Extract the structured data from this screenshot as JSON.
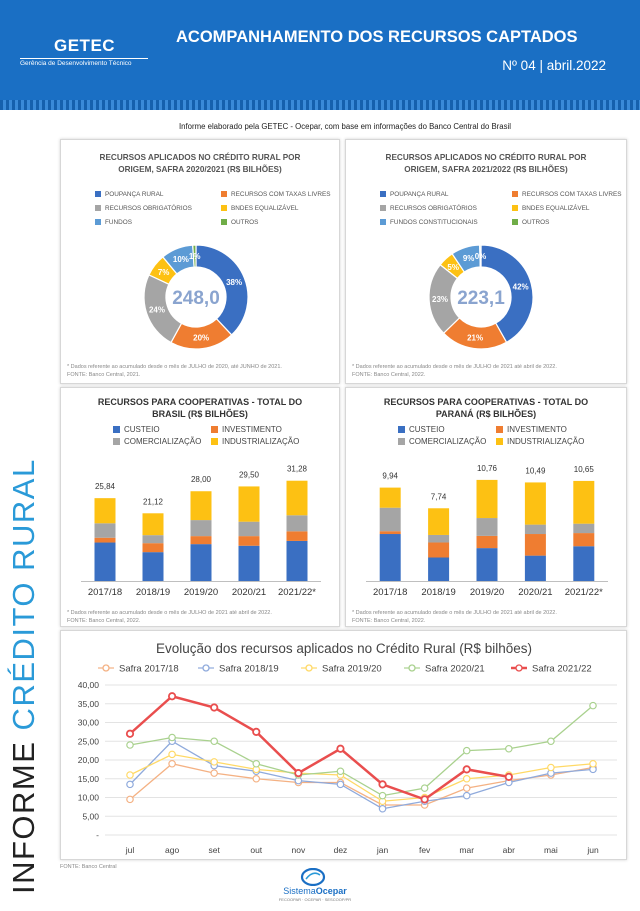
{
  "header": {
    "logo": "GETEC",
    "logo_sub": "Gerência de Desenvolvimento Técnico",
    "title": "ACOMPANHAMENTO DOS RECURSOS CAPTADOS",
    "edition": "Nº 04 | abril.2022"
  },
  "sidebar": {
    "part1": "INFORME ",
    "part2": "CRÉDITO RURAL"
  },
  "intro": "Informe elaborado pela GETEC - Ocepar, com base em informações do Banco Central do Brasil",
  "colors": {
    "blue": "#3a6fc2",
    "orange": "#ef7d31",
    "gray": "#a5a5a5",
    "yellow": "#fdc113",
    "lightblue": "#5c9bd5",
    "green": "#70ad47"
  },
  "pie1": {
    "title1": "RECURSOS APLICADOS NO CRÉDITO RURAL POR",
    "title2": "ORIGEM, SAFRA 2020/2021 (R$ BILHÕES)",
    "legend": [
      "POUPANÇA RURAL",
      "RECURSOS COM TAXAS LIVRES",
      "RECURSOS OBRIGATÓRIOS",
      "BNDES EQUALIZÁVEL",
      "FUNDOS",
      "OUTROS"
    ],
    "center": "248,0",
    "footnote1": "* Dados referente ao acumulado desde o mês de JULHO de 2020, até JUNHO de 2021.",
    "footnote2": "FONTE: Banco Central, 2021."
  },
  "pie2": {
    "title1": "RECURSOS APLICADOS NO CRÉDITO RURAL POR",
    "title2": "ORIGEM, SAFRA 2021/2022 (R$ BILHÕES)",
    "legend": [
      "POUPANÇA RURAL",
      "RECURSOS COM TAXAS LIVRES",
      "RECURSOS OBRIGATÓRIOS",
      "BNDES EQUALIZÁVEL",
      "FUNDOS CONSTITUCIONAIS",
      "OUTROS"
    ],
    "center": "223,1",
    "footnote1": "* Dados referente ao acumulado desde o mês de JULHO de 2021 até abril de 2022.",
    "footnote2": "FONTE: Banco Central, 2022."
  },
  "bars1": {
    "title1": "RECURSOS PARA COOPERATIVAS - TOTAL DO",
    "title2": "BRASIL (R$ BILHÕES)",
    "legend": [
      "CUSTEIO",
      "INVESTIMENTO",
      "COMERCIALIZAÇÃO",
      "INDUSTRIALIZAÇÃO"
    ],
    "footnote1": "* Dados referente ao acumulado desde o mês de JULHO de 2021 até abril de 2022.",
    "footnote2": "FONTE: Banco Central, 2022."
  },
  "bars2": {
    "title1": "RECURSOS PARA COOPERATIVAS - TOTAL DO",
    "title2": "PARANÁ (R$ BILHÕES)",
    "legend": [
      "CUSTEIO",
      "INVESTIMENTO",
      "COMERCIALIZAÇÃO",
      "INDUSTRIALIZAÇÃO"
    ],
    "footnote1": "* Dados referente ao acumulado desde o mês de JULHO de 2021 até abril de 2022.",
    "footnote2": "FONTE: Banco Central, 2022."
  },
  "chart_data": [
    {
      "type": "pie",
      "title": "RECURSOS APLICADOS NO CRÉDITO RURAL POR ORIGEM, SAFRA 2020/2021 (R$ BILHÕES)",
      "total": "248,0",
      "slices": [
        {
          "name": "POUPANÇA RURAL",
          "value": 38,
          "label": "38%",
          "color": "#3a6fc2"
        },
        {
          "name": "RECURSOS COM TAXAS LIVRES",
          "value": 20,
          "label": "20%",
          "color": "#ef7d31"
        },
        {
          "name": "RECURSOS OBRIGATÓRIOS",
          "value": 24,
          "label": "24%",
          "color": "#a5a5a5"
        },
        {
          "name": "BNDES EQUALIZÁVEL",
          "value": 7,
          "label": "7%",
          "color": "#fdc113"
        },
        {
          "name": "FUNDOS",
          "value": 10,
          "label": "10%",
          "color": "#5c9bd5"
        },
        {
          "name": "OUTROS",
          "value": 1,
          "label": "1%",
          "color": "#70ad47"
        }
      ]
    },
    {
      "type": "pie",
      "title": "RECURSOS APLICADOS NO CRÉDITO RURAL POR ORIGEM, SAFRA 2021/2022 (R$ BILHÕES)",
      "total": "223,1",
      "slices": [
        {
          "name": "POUPANÇA RURAL",
          "value": 42,
          "label": "42%",
          "color": "#3a6fc2"
        },
        {
          "name": "RECURSOS COM TAXAS LIVRES",
          "value": 21,
          "label": "21%",
          "color": "#ef7d31"
        },
        {
          "name": "RECURSOS OBRIGATÓRIOS",
          "value": 23,
          "label": "23%",
          "color": "#a5a5a5"
        },
        {
          "name": "BNDES EQUALIZÁVEL",
          "value": 5,
          "label": "5%",
          "color": "#fdc113"
        },
        {
          "name": "FUNDOS CONSTITUCIONAIS",
          "value": 9,
          "label": "9%",
          "color": "#5c9bd5"
        },
        {
          "name": "OUTROS",
          "value": 0.4,
          "label": "0%",
          "color": "#70ad47"
        }
      ]
    },
    {
      "type": "bar",
      "stacked": true,
      "title": "RECURSOS PARA COOPERATIVAS - TOTAL DO BRASIL (R$ BILHÕES)",
      "categories": [
        "2017/18",
        "2018/19",
        "2019/20",
        "2020/21",
        "2021/22*"
      ],
      "totals": [
        "25,84",
        "21,12",
        "28,00",
        "29,50",
        "31,28"
      ],
      "total_values": [
        25.84,
        21.12,
        28.0,
        29.5,
        31.28
      ],
      "series": [
        {
          "name": "CUSTEIO",
          "color": "#3a6fc2",
          "values": [
            12.0,
            9.0,
            11.5,
            11.0,
            12.5
          ]
        },
        {
          "name": "INVESTIMENTO",
          "color": "#ef7d31",
          "values": [
            1.5,
            2.8,
            2.5,
            3.0,
            3.0
          ]
        },
        {
          "name": "COMERCIALIZAÇÃO",
          "color": "#a5a5a5",
          "values": [
            4.5,
            2.5,
            5.0,
            4.5,
            5.0
          ]
        },
        {
          "name": "INDUSTRIALIZAÇÃO",
          "color": "#fdc113",
          "values": [
            7.84,
            6.82,
            9.0,
            11.0,
            10.78
          ]
        }
      ],
      "ylim": [
        0,
        34
      ]
    },
    {
      "type": "bar",
      "stacked": true,
      "title": "RECURSOS PARA COOPERATIVAS - TOTAL DO PARANÁ (R$ BILHÕES)",
      "categories": [
        "2017/18",
        "2018/19",
        "2019/20",
        "2020/21",
        "2021/22*"
      ],
      "totals": [
        "9,94",
        "7,74",
        "10,76",
        "10,49",
        "10,65"
      ],
      "total_values": [
        9.94,
        7.74,
        10.76,
        10.49,
        10.65
      ],
      "series": [
        {
          "name": "CUSTEIO",
          "color": "#3a6fc2",
          "values": [
            5.0,
            2.5,
            3.5,
            2.7,
            3.7
          ]
        },
        {
          "name": "INVESTIMENTO",
          "color": "#ef7d31",
          "values": [
            0.3,
            1.6,
            1.3,
            2.3,
            1.4
          ]
        },
        {
          "name": "COMERCIALIZAÇÃO",
          "color": "#a5a5a5",
          "values": [
            2.5,
            0.8,
            1.9,
            1.0,
            1.0
          ]
        },
        {
          "name": "INDUSTRIALIZAÇÃO",
          "color": "#fdc113",
          "values": [
            2.14,
            2.84,
            4.06,
            4.49,
            4.55
          ]
        }
      ],
      "ylim": [
        0,
        11.6
      ]
    },
    {
      "type": "line",
      "title": "Evolução dos recursos aplicados no Crédito Rural (R$ bilhões)",
      "categories": [
        "jul",
        "ago",
        "set",
        "out",
        "nov",
        "dez",
        "jan",
        "fev",
        "mar",
        "abr",
        "mai",
        "jun"
      ],
      "ylim": [
        0,
        40
      ],
      "yticks": [
        "-",
        "5,00",
        "10,00",
        "15,00",
        "20,00",
        "25,00",
        "30,00",
        "35,00",
        "40,00"
      ],
      "series": [
        {
          "name": "Safra 2017/18",
          "color": "#f4b183",
          "values": [
            9.5,
            19.0,
            16.5,
            15.0,
            14.0,
            14.0,
            8.0,
            8.0,
            12.5,
            14.5,
            16.0,
            18.0
          ]
        },
        {
          "name": "Safra 2018/19",
          "color": "#8faadc",
          "values": [
            13.5,
            25.0,
            18.5,
            17.0,
            14.5,
            13.5,
            7.0,
            9.0,
            10.5,
            14.0,
            16.5,
            17.5
          ]
        },
        {
          "name": "Safra 2019/20",
          "color": "#ffd966",
          "values": [
            16.0,
            21.5,
            19.5,
            17.5,
            16.5,
            16.0,
            9.0,
            10.0,
            15.0,
            16.0,
            18.0,
            19.0
          ]
        },
        {
          "name": "Safra 2020/21",
          "color": "#a9d18e",
          "values": [
            24.0,
            26.0,
            25.0,
            19.0,
            16.0,
            17.0,
            10.5,
            12.5,
            22.5,
            23.0,
            25.0,
            34.5
          ]
        },
        {
          "name": "Safra 2021/22",
          "color": "#e94e4e",
          "values": [
            27.0,
            37.0,
            34.0,
            27.5,
            16.5,
            23.0,
            13.5,
            9.5,
            17.5,
            15.5,
            null,
            null
          ]
        }
      ]
    }
  ],
  "footer": {
    "source": "FONTE: Banco Central",
    "brand_a": "Sistema",
    "brand_b": "Ocepar",
    "brand_sub": "FECOOPAR · OCEPAR · SESCOOP/PR"
  }
}
